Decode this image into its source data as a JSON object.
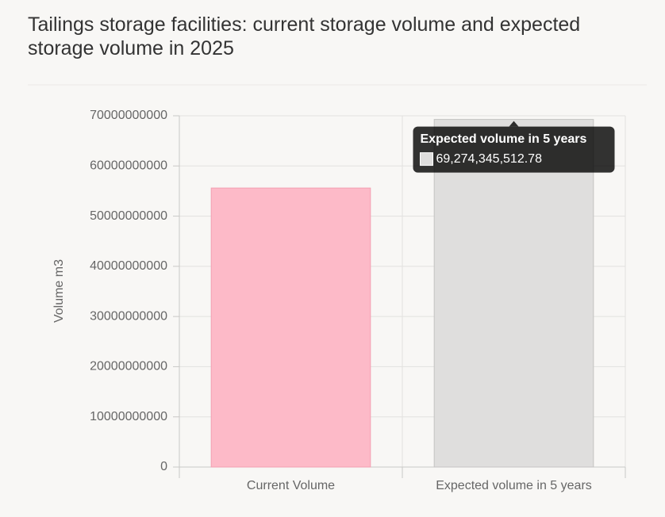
{
  "chart_data": {
    "type": "bar",
    "title": "Tailings storage facilities: current storage volume and expected storage volume in 2025",
    "y_label": "Volume m3",
    "categories": [
      "Current Volume",
      "Expected volume in 5 years"
    ],
    "values": [
      55600000000,
      69274345512.78
    ],
    "value_labels": [
      null,
      "69,274,345,512.78"
    ],
    "colors": [
      "#fdbac8",
      "#dfdedd"
    ],
    "border_colors": [
      "#f2a0b2",
      "#c4c3c2"
    ],
    "ylim": [
      0,
      70000000000
    ],
    "yticks": [
      0,
      10000000000,
      20000000000,
      30000000000,
      40000000000,
      50000000000,
      60000000000,
      70000000000
    ],
    "grid": true,
    "tooltip_index": 1
  }
}
